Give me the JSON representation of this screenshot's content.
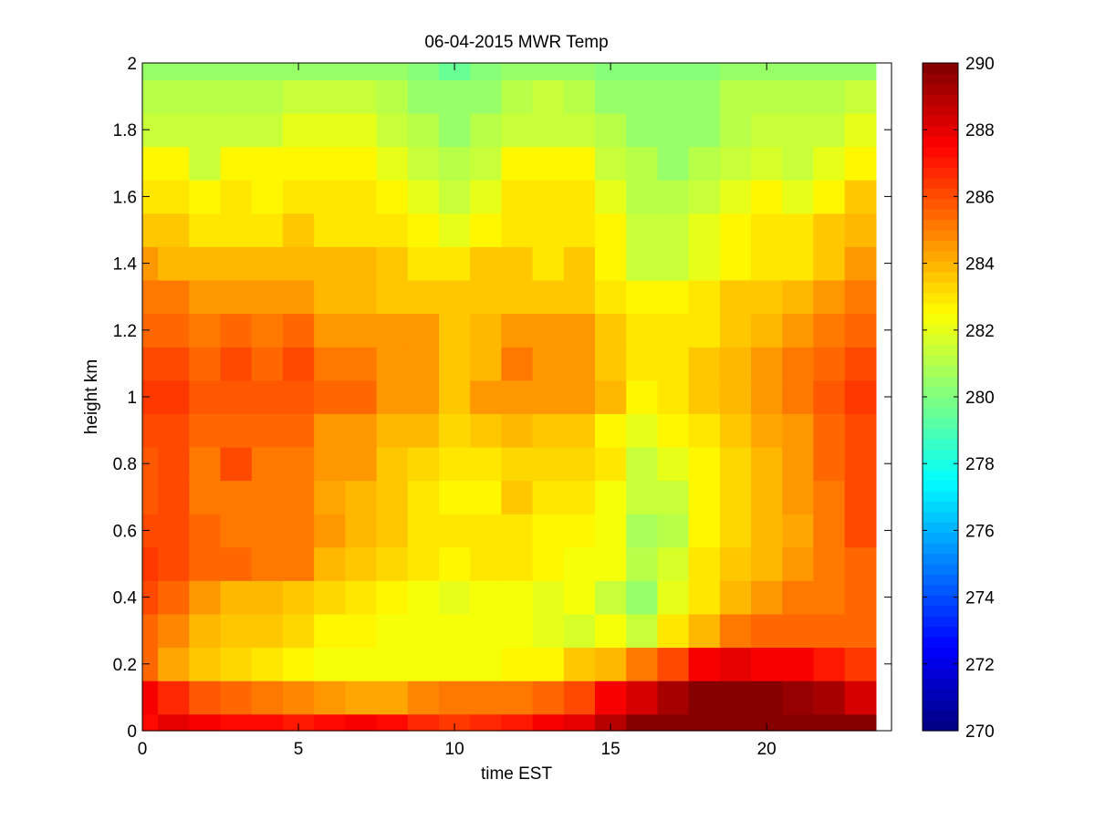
{
  "chart_data": {
    "type": "heatmap",
    "title": "06-04-2015 MWR Temp",
    "xlabel": "time EST",
    "ylabel": "height km",
    "xlim": [
      0,
      24
    ],
    "ylim": [
      0,
      2
    ],
    "x_ticks": [
      "0",
      "5",
      "10",
      "15",
      "20"
    ],
    "x_tick_values": [
      0,
      5,
      10,
      15,
      20
    ],
    "y_ticks": [
      "0",
      "0.2",
      "0.4",
      "0.6",
      "0.8",
      "1",
      "1.2",
      "1.4",
      "1.6",
      "1.8",
      "2"
    ],
    "y_tick_values": [
      0,
      0.2,
      0.4,
      0.6,
      0.8,
      1.0,
      1.2,
      1.4,
      1.6,
      1.8,
      2.0
    ],
    "colorbar": {
      "colormap": "jet",
      "clim": [
        270,
        290
      ],
      "ticks": [
        "270",
        "272",
        "274",
        "276",
        "278",
        "280",
        "282",
        "284",
        "286",
        "288",
        "290"
      ],
      "tick_values": [
        270,
        272,
        274,
        276,
        278,
        280,
        282,
        284,
        286,
        288,
        290
      ]
    },
    "x_edges": [
      0,
      0.5,
      1.5,
      2.5,
      3.5,
      4.5,
      5.5,
      6.5,
      7.5,
      8.5,
      9.5,
      10.5,
      11.5,
      12.5,
      13.5,
      14.5,
      15.5,
      16.5,
      17.5,
      18.5,
      19.5,
      20.5,
      21.5,
      22.5,
      23.5
    ],
    "y_edges": [
      0,
      0.05,
      0.15,
      0.25,
      0.35,
      0.45,
      0.55,
      0.65,
      0.75,
      0.85,
      0.95,
      1.05,
      1.15,
      1.25,
      1.35,
      1.45,
      1.55,
      1.65,
      1.75,
      1.85,
      1.95,
      2.0
    ],
    "values": [
      [
        287.2,
        288.0,
        287.8,
        287.3,
        287.2,
        287.0,
        287.2,
        287.5,
        287.3,
        286.8,
        286.5,
        286.7,
        287.0,
        287.7,
        288.0,
        289.0,
        290.0,
        290.0,
        290.0,
        290.0,
        290.0,
        290.0,
        290.0,
        290.0
      ],
      [
        287.5,
        286.7,
        285.7,
        285.5,
        285.0,
        284.7,
        284.5,
        284.3,
        284.2,
        284.7,
        285.0,
        285.0,
        285.0,
        285.5,
        286.0,
        287.5,
        288.3,
        289.2,
        290.0,
        290.0,
        289.8,
        289.5,
        289.2,
        288.3
      ],
      [
        285.5,
        284.2,
        283.7,
        283.2,
        283.0,
        282.7,
        282.3,
        282.3,
        282.2,
        282.2,
        282.2,
        282.2,
        282.5,
        282.7,
        283.5,
        283.8,
        285.0,
        286.2,
        287.5,
        288.0,
        287.7,
        287.5,
        287.0,
        286.5
      ],
      [
        285.5,
        284.7,
        284.0,
        283.5,
        283.5,
        283.2,
        282.8,
        282.5,
        282.2,
        282.2,
        282.2,
        282.2,
        282.2,
        282.0,
        281.7,
        282.2,
        281.5,
        283.0,
        284.0,
        285.3,
        285.5,
        285.5,
        285.5,
        285.5
      ],
      [
        286.0,
        285.5,
        284.5,
        284.0,
        284.0,
        283.5,
        283.3,
        283.0,
        282.7,
        282.2,
        282.0,
        282.3,
        282.3,
        282.0,
        282.2,
        281.5,
        280.5,
        282.0,
        283.0,
        284.0,
        284.5,
        285.0,
        285.3,
        285.5
      ],
      [
        286.3,
        286.0,
        285.5,
        285.5,
        285.0,
        285.0,
        284.0,
        283.5,
        283.3,
        283.0,
        282.8,
        283.0,
        283.0,
        282.7,
        282.3,
        282.3,
        281.0,
        281.8,
        283.0,
        283.5,
        284.0,
        284.5,
        285.0,
        285.5
      ],
      [
        286.0,
        286.0,
        285.5,
        285.3,
        285.0,
        285.0,
        284.5,
        284.0,
        283.5,
        283.0,
        283.0,
        283.0,
        283.0,
        282.5,
        282.5,
        282.2,
        280.8,
        281.0,
        282.5,
        283.3,
        283.8,
        284.3,
        285.0,
        286.0
      ],
      [
        285.8,
        286.0,
        285.3,
        285.3,
        285.0,
        285.0,
        284.3,
        284.0,
        283.5,
        283.0,
        282.5,
        282.5,
        283.5,
        283.0,
        283.0,
        282.3,
        281.3,
        281.5,
        282.5,
        283.3,
        284.0,
        284.5,
        285.0,
        286.0
      ],
      [
        285.8,
        286.0,
        285.3,
        286.0,
        285.0,
        285.0,
        284.5,
        284.5,
        283.5,
        283.3,
        283.0,
        283.0,
        283.3,
        283.3,
        283.3,
        283.0,
        281.5,
        282.0,
        282.8,
        283.3,
        284.0,
        284.5,
        285.5,
        286.0
      ],
      [
        286.0,
        286.0,
        285.5,
        285.5,
        285.5,
        285.5,
        284.5,
        284.5,
        284.0,
        284.0,
        283.3,
        283.5,
        284.0,
        283.5,
        283.5,
        282.8,
        282.0,
        282.5,
        283.0,
        283.5,
        284.3,
        284.5,
        285.5,
        286.0
      ],
      [
        286.3,
        286.5,
        285.8,
        285.8,
        285.8,
        285.8,
        285.5,
        285.5,
        284.5,
        284.5,
        283.5,
        284.5,
        284.5,
        284.5,
        284.5,
        283.8,
        282.8,
        283.0,
        283.5,
        284.0,
        284.5,
        285.0,
        285.8,
        286.3
      ],
      [
        286.0,
        286.0,
        285.5,
        286.0,
        285.5,
        286.0,
        285.0,
        285.0,
        284.5,
        284.5,
        283.5,
        284.0,
        285.0,
        284.5,
        284.5,
        283.5,
        283.0,
        283.0,
        283.5,
        284.0,
        284.5,
        285.0,
        285.5,
        286.0
      ],
      [
        285.5,
        285.5,
        285.0,
        285.5,
        285.0,
        285.5,
        284.5,
        284.5,
        284.5,
        284.5,
        283.5,
        284.0,
        284.5,
        284.5,
        284.5,
        283.5,
        283.0,
        283.0,
        283.0,
        283.5,
        284.0,
        284.5,
        285.0,
        285.5
      ],
      [
        285.0,
        285.0,
        284.5,
        284.5,
        284.5,
        284.5,
        284.0,
        284.0,
        283.5,
        283.5,
        283.5,
        283.5,
        283.5,
        283.5,
        283.5,
        283.0,
        282.5,
        282.5,
        283.0,
        283.5,
        283.5,
        284.0,
        284.5,
        285.0
      ],
      [
        284.5,
        284.0,
        284.0,
        284.0,
        284.0,
        284.0,
        284.0,
        284.0,
        283.5,
        283.0,
        283.0,
        283.5,
        283.5,
        283.0,
        283.5,
        282.5,
        281.5,
        281.5,
        282.0,
        282.5,
        283.0,
        283.0,
        283.5,
        284.5
      ],
      [
        283.5,
        283.5,
        283.0,
        283.0,
        283.0,
        283.5,
        283.0,
        283.0,
        283.0,
        282.5,
        282.0,
        282.5,
        283.0,
        283.0,
        283.0,
        282.5,
        281.5,
        281.5,
        282.0,
        282.5,
        283.0,
        283.0,
        283.5,
        284.0
      ],
      [
        283.0,
        283.0,
        282.5,
        283.0,
        282.5,
        283.0,
        283.0,
        283.0,
        282.5,
        282.0,
        281.5,
        282.0,
        283.0,
        283.0,
        283.0,
        282.0,
        281.0,
        281.0,
        281.5,
        282.0,
        282.5,
        282.0,
        282.5,
        283.5
      ],
      [
        282.5,
        282.5,
        281.5,
        282.5,
        282.5,
        282.5,
        282.5,
        282.5,
        282.0,
        281.5,
        281.0,
        281.5,
        282.5,
        282.5,
        282.5,
        281.5,
        281.0,
        280.5,
        281.0,
        281.5,
        281.8,
        281.5,
        282.0,
        282.5
      ],
      [
        281.5,
        281.5,
        281.5,
        281.5,
        281.5,
        282.0,
        282.0,
        282.0,
        281.5,
        281.0,
        280.5,
        281.0,
        281.5,
        281.5,
        281.5,
        281.0,
        280.5,
        280.5,
        280.5,
        281.0,
        281.5,
        281.5,
        281.5,
        282.0
      ],
      [
        281.0,
        281.0,
        281.0,
        281.0,
        281.0,
        281.5,
        281.5,
        281.5,
        281.0,
        280.5,
        280.5,
        280.5,
        281.0,
        281.5,
        281.0,
        280.5,
        280.5,
        280.5,
        280.5,
        281.0,
        281.0,
        281.0,
        281.0,
        281.5
      ],
      [
        280.5,
        280.5,
        280.5,
        280.5,
        280.5,
        280.5,
        280.5,
        280.5,
        280.5,
        280.0,
        279.5,
        280.0,
        280.5,
        280.5,
        280.5,
        280.0,
        280.0,
        280.0,
        280.0,
        280.5,
        280.5,
        280.5,
        280.5,
        280.5
      ]
    ]
  }
}
